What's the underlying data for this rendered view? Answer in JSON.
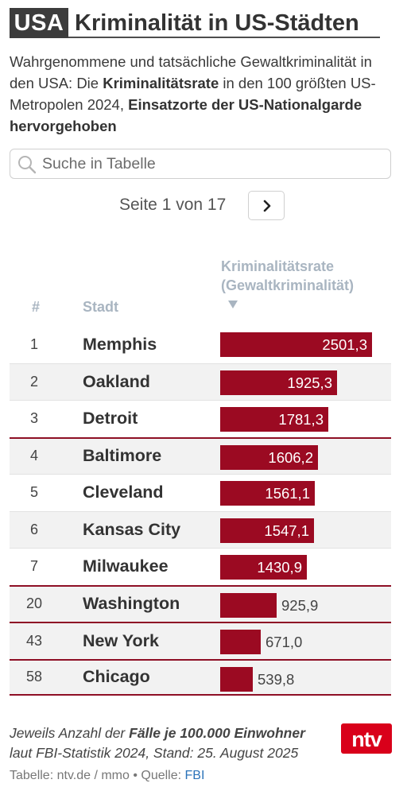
{
  "header": {
    "tag": "USA",
    "title": "Kriminalität in US-Städten"
  },
  "subtitle": {
    "part1": "Wahrgenommene und tatsächliche Gewaltkriminalität in den USA: Die ",
    "bold1": "Kriminalitätsrate",
    "part2": " in den 100 größten US-Metropolen 2024, ",
    "bold2": "Einsatzorte der US-Nationalgarde hervorgehoben"
  },
  "search": {
    "placeholder": "Suche in Tabelle",
    "value": "",
    "icon": "search-icon"
  },
  "pagination": {
    "text": "Seite 1 von 17",
    "next_icon": "chevron-right-icon"
  },
  "table": {
    "col_num": "#",
    "col_city": "Stadt",
    "col_rate_line1": "Kriminalitätsrate",
    "col_rate_line2": "(Gewaltkriminalität)",
    "sort_icon": "sort-down-icon"
  },
  "chart_data": {
    "type": "bar",
    "orientation": "horizontal",
    "max_value": 2501.3,
    "bar_color": "#9b0a22",
    "highlight_color": "#8e0f25",
    "rows": [
      {
        "rank": "1",
        "city": "Memphis",
        "value": 2501.3,
        "label": "2501,3",
        "highlight": false
      },
      {
        "rank": "2",
        "city": "Oakland",
        "value": 1925.3,
        "label": "1925,3",
        "highlight": false
      },
      {
        "rank": "3",
        "city": "Detroit",
        "value": 1781.3,
        "label": "1781,3",
        "highlight": false
      },
      {
        "rank": "4",
        "city": "Baltimore",
        "value": 1606.2,
        "label": "1606,2",
        "highlight": true
      },
      {
        "rank": "5",
        "city": "Cleveland",
        "value": 1561.1,
        "label": "1561,1",
        "highlight": false
      },
      {
        "rank": "6",
        "city": "Kansas City",
        "value": 1547.1,
        "label": "1547,1",
        "highlight": false
      },
      {
        "rank": "7",
        "city": "Milwaukee",
        "value": 1430.9,
        "label": "1430,9",
        "highlight": false
      },
      {
        "rank": "20",
        "city": "Washington",
        "value": 925.9,
        "label": "925,9",
        "highlight": true
      },
      {
        "rank": "43",
        "city": "New York",
        "value": 671.0,
        "label": "671,0",
        "highlight": true
      },
      {
        "rank": "58",
        "city": "Chicago",
        "value": 539.8,
        "label": "539,8",
        "highlight": true
      }
    ]
  },
  "footnote": {
    "part1": "Jeweils Anzahl der ",
    "bold": "Fälle je 100.000 Einwohner",
    "part2": " laut FBI-Statistik 2024, Stand: 25. August 2025"
  },
  "logo": {
    "text": "ntv",
    "color": "#d9001a"
  },
  "credit": {
    "prefix": "Tabelle: ntv.de / mmo • Quelle: ",
    "source": "FBI"
  }
}
